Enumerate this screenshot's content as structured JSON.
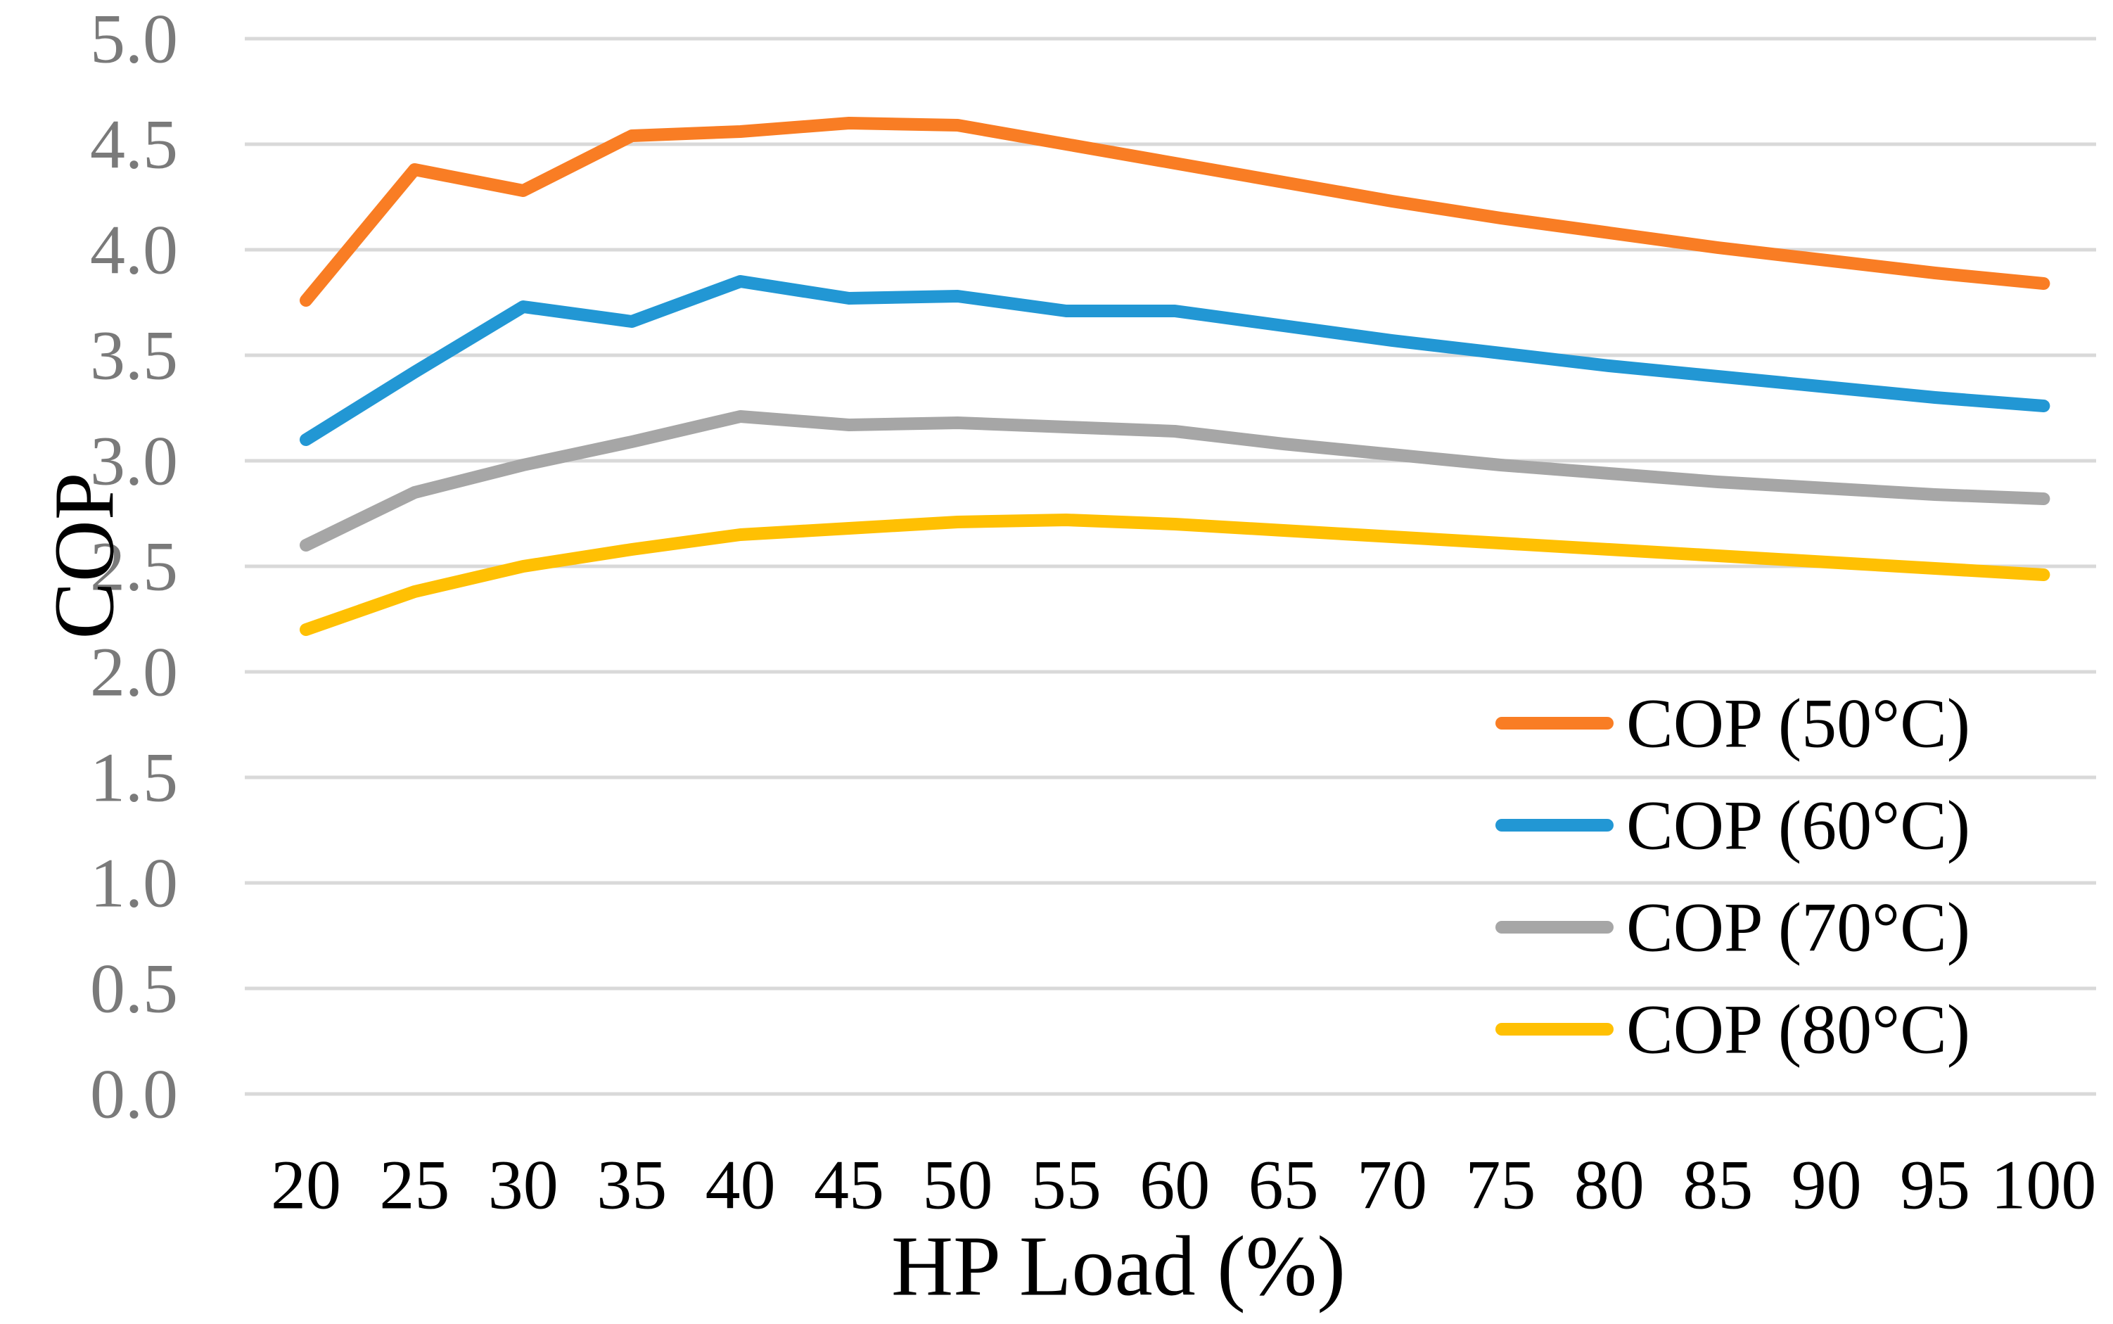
{
  "chart_data": {
    "type": "line",
    "title": "",
    "xlabel": "HP Load (%)",
    "ylabel": "COP",
    "x": [
      20,
      25,
      30,
      35,
      40,
      45,
      50,
      55,
      60,
      65,
      70,
      75,
      80,
      85,
      90,
      95,
      100
    ],
    "x_tick_labels": [
      "20",
      "25",
      "30",
      "35",
      "40",
      "45",
      "50",
      "55",
      "60",
      "65",
      "70",
      "75",
      "80",
      "85",
      "90",
      "95",
      "100"
    ],
    "y_ticks": [
      0.0,
      0.5,
      1.0,
      1.5,
      2.0,
      2.5,
      3.0,
      3.5,
      4.0,
      4.5,
      5.0
    ],
    "y_tick_labels": [
      "0.0",
      "0.5",
      "1.0",
      "1.5",
      "2.0",
      "2.5",
      "3.0",
      "3.5",
      "4.0",
      "4.5",
      "5.0"
    ],
    "ylim": [
      0.0,
      5.0
    ],
    "grid": "horizontal-only",
    "gridline_color": "#D9D9D9",
    "y_tick_label_color": "#7A7A7A",
    "x_tick_label_color": "#000000",
    "legend_position": "inside-lower-right",
    "series": [
      {
        "name": "COP (50°C)",
        "color": "#F97D24",
        "values": [
          3.76,
          4.38,
          4.28,
          4.54,
          4.56,
          4.6,
          4.59,
          4.5,
          4.41,
          4.32,
          4.23,
          4.15,
          4.08,
          4.01,
          3.95,
          3.89,
          3.84
        ]
      },
      {
        "name": "COP (60°C)",
        "color": "#2297D4",
        "values": [
          3.1,
          3.42,
          3.73,
          3.66,
          3.85,
          3.77,
          3.78,
          3.71,
          3.71,
          3.64,
          3.57,
          3.51,
          3.45,
          3.4,
          3.35,
          3.3,
          3.26
        ]
      },
      {
        "name": "COP (70°C)",
        "color": "#A6A6A6",
        "values": [
          2.6,
          2.85,
          2.98,
          3.09,
          3.21,
          3.17,
          3.18,
          3.16,
          3.14,
          3.08,
          3.03,
          2.98,
          2.94,
          2.9,
          2.87,
          2.84,
          2.82
        ]
      },
      {
        "name": "COP (80°C)",
        "color": "#FFC003",
        "values": [
          2.2,
          2.38,
          2.5,
          2.58,
          2.65,
          2.68,
          2.71,
          2.72,
          2.7,
          2.67,
          2.64,
          2.61,
          2.58,
          2.55,
          2.52,
          2.49,
          2.46
        ]
      }
    ]
  }
}
